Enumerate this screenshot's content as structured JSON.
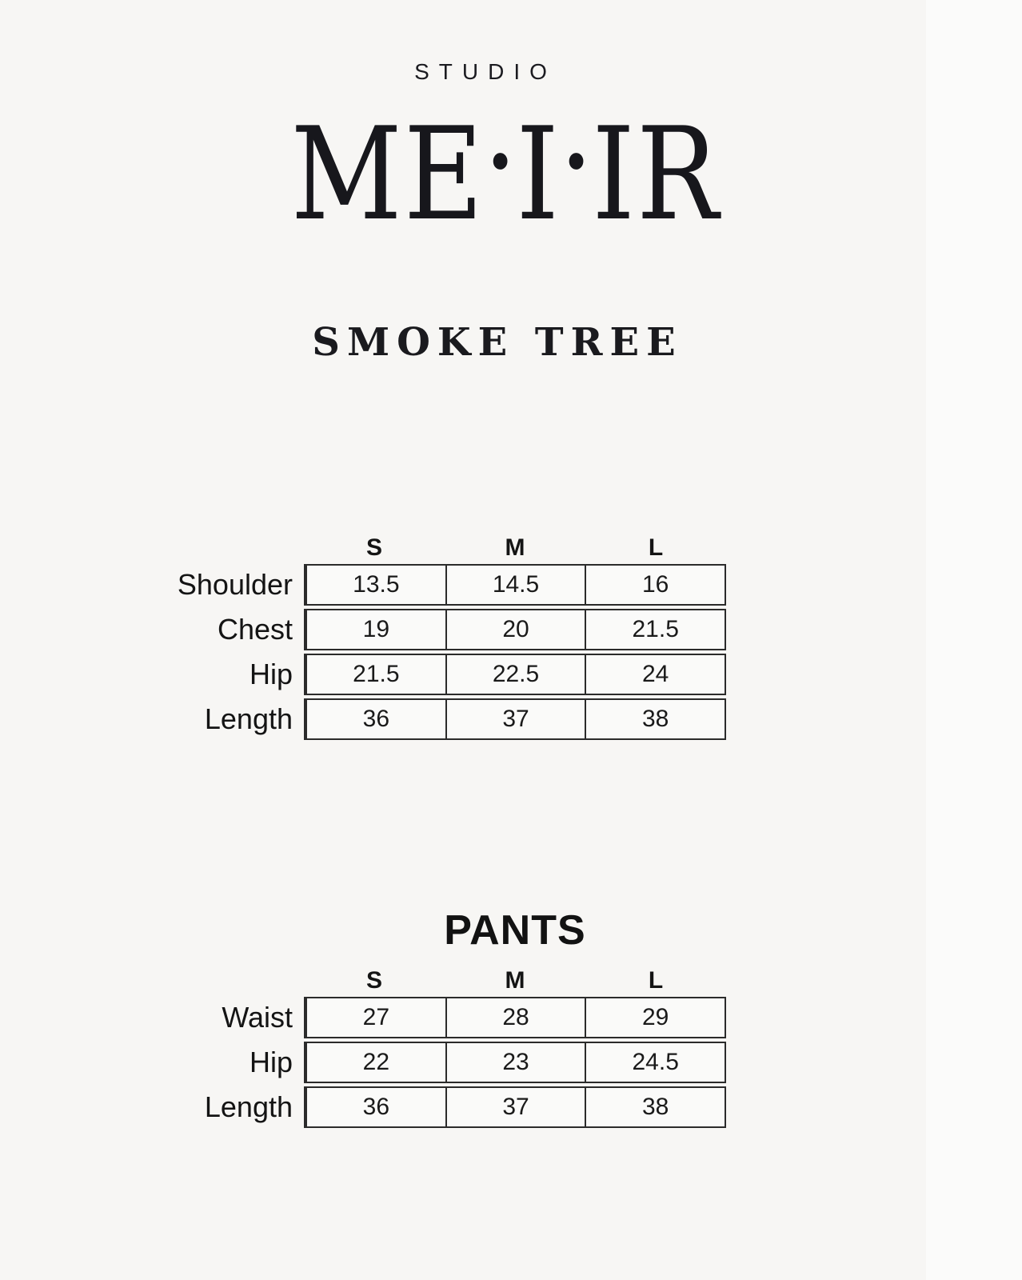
{
  "colors": {
    "background": "#f7f6f4",
    "text": "#141414",
    "table_border": "#2b2b2b"
  },
  "brand": {
    "studio": "STUDIO",
    "wordmark_parts": [
      "M",
      "E",
      "·",
      "I",
      "·",
      "I",
      "R"
    ]
  },
  "product_title": "SMOKE TREE",
  "size_headers": [
    "S",
    "M",
    "L"
  ],
  "top_table": {
    "rows": [
      {
        "label": "Shoulder",
        "values": [
          "13.5",
          "14.5",
          "16"
        ]
      },
      {
        "label": "Chest",
        "values": [
          "19",
          "20",
          "21.5"
        ]
      },
      {
        "label": "Hip",
        "values": [
          "21.5",
          "22.5",
          "24"
        ]
      },
      {
        "label": "Length",
        "values": [
          "36",
          "37",
          "38"
        ]
      }
    ]
  },
  "pants_table": {
    "title": "PANTS",
    "rows": [
      {
        "label": "Waist",
        "values": [
          "27",
          "28",
          "29"
        ]
      },
      {
        "label": "Hip",
        "values": [
          "22",
          "23",
          "24.5"
        ]
      },
      {
        "label": "Length",
        "values": [
          "36",
          "37",
          "38"
        ]
      }
    ]
  }
}
